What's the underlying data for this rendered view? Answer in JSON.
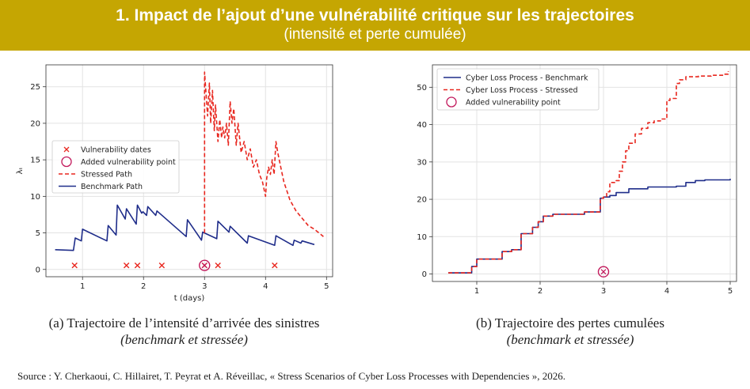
{
  "title": {
    "main": "1. Impact de l’ajout d’une vulnérabilité critique sur les trajectoires",
    "sub": "(intensité et perte cumulée)"
  },
  "captions": {
    "a_line1": "(a) Trajectoire de l’intensité d’arrivée des sinistres",
    "a_line2": "(benchmark et stressée)",
    "b_line1": "(b) Trajectoire des pertes cumulées",
    "b_line2": "(benchmark et stressée)"
  },
  "source": "Source : Y. Cherkaoui, C. Hillairet, T. Peyrat et A. Réveillac, « Stress Scenarios of Cyber Loss Processes with Dependencies », 2026.",
  "colors": {
    "banner": "#c5a602",
    "benchmark": "#1f2d8a",
    "stressed": "#e8271f",
    "marker": "#c2185b"
  },
  "chart_data": [
    {
      "type": "line",
      "xlabel": "t (days)",
      "ylabel": "λₜ",
      "xlim": [
        0.4,
        5.1
      ],
      "ylim": [
        -1,
        28
      ],
      "xticks": [
        1,
        2,
        3,
        4,
        5
      ],
      "yticks": [
        0,
        5,
        10,
        15,
        20,
        25
      ],
      "grid": true,
      "legend_position": "center-left",
      "legend": [
        "Vulnerability dates",
        "Added vulnerability point",
        "Stressed Path",
        "Benchmark Path"
      ],
      "series": [
        {
          "name": "Benchmark Path",
          "style": "solid",
          "x": [
            0.55,
            0.85,
            0.88,
            0.98,
            1.0,
            1.4,
            1.42,
            1.55,
            1.57,
            1.7,
            1.72,
            1.88,
            1.9,
            1.97,
            1.99,
            2.05,
            2.07,
            2.2,
            2.22,
            2.7,
            2.72,
            2.95,
            2.97,
            3.2,
            3.22,
            3.4,
            3.42,
            3.7,
            3.72,
            4.15,
            4.17,
            4.45,
            4.47,
            4.58,
            4.6,
            4.8
          ],
          "y": [
            2.7,
            2.6,
            4.3,
            3.9,
            5.5,
            3.9,
            6.0,
            4.7,
            8.8,
            6.9,
            8.3,
            6.2,
            8.8,
            7.7,
            7.9,
            7.4,
            8.6,
            7.4,
            8.0,
            4.5,
            6.8,
            4.0,
            5.1,
            4.2,
            6.6,
            5.1,
            5.9,
            3.6,
            4.6,
            3.3,
            4.6,
            3.3,
            4.0,
            3.6,
            3.9,
            3.4
          ]
        },
        {
          "name": "Stressed Path",
          "style": "dashed",
          "x": [
            3.0,
            3.0,
            3.05,
            3.08,
            3.1,
            3.13,
            3.16,
            3.18,
            3.22,
            3.25,
            3.28,
            3.3,
            3.33,
            3.36,
            3.39,
            3.42,
            3.45,
            3.48,
            3.52,
            3.55,
            3.6,
            3.65,
            3.7,
            3.75,
            3.8,
            3.85,
            3.9,
            3.95,
            4.0,
            4.02,
            4.05,
            4.08,
            4.11,
            4.14,
            4.17,
            4.2,
            4.25,
            4.3,
            4.4,
            4.5,
            4.6,
            4.7,
            4.8,
            4.95
          ],
          "y": [
            5.0,
            27.0,
            21.0,
            25.5,
            20.0,
            24.5,
            19.0,
            22.5,
            17.5,
            20.5,
            18.0,
            19.5,
            18.0,
            20.0,
            17.0,
            23.0,
            20.0,
            22.0,
            17.0,
            20.0,
            16.0,
            17.5,
            15.0,
            16.5,
            14.0,
            15.0,
            13.0,
            12.0,
            10.0,
            12.5,
            14.0,
            13.0,
            15.0,
            13.0,
            17.5,
            16.0,
            14.0,
            12.0,
            9.5,
            8.0,
            7.0,
            6.0,
            5.5,
            4.5
          ]
        },
        {
          "name": "Vulnerability dates",
          "style": "marker-x",
          "x": [
            0.87,
            1.72,
            1.9,
            2.3,
            3.0,
            3.22,
            4.15
          ],
          "y": [
            0.55,
            0.55,
            0.55,
            0.55,
            0.55,
            0.55,
            0.55
          ]
        },
        {
          "name": "Added vulnerability point",
          "style": "marker-circle",
          "x": [
            3.0
          ],
          "y": [
            0.55
          ]
        }
      ]
    },
    {
      "type": "line",
      "xlabel": "",
      "ylabel": "",
      "xlim": [
        0.3,
        5.1
      ],
      "ylim": [
        -2,
        56
      ],
      "xticks": [
        1,
        2,
        3,
        4,
        5
      ],
      "yticks": [
        0,
        10,
        20,
        30,
        40,
        50
      ],
      "grid": true,
      "legend_position": "top-left",
      "legend": [
        "Cyber Loss Process - Benchmark",
        "Cyber Loss Process - Stressed",
        "Added vulnerability point"
      ],
      "series": [
        {
          "name": "Cyber Loss Process - Benchmark",
          "style": "solid-step",
          "x": [
            0.55,
            0.9,
            0.92,
            1.0,
            1.4,
            1.55,
            1.7,
            1.88,
            1.97,
            2.05,
            2.2,
            2.7,
            2.95,
            3.0,
            3.1,
            3.2,
            3.4,
            3.7,
            4.15,
            4.3,
            4.45,
            4.6,
            5.0
          ],
          "y": [
            0.3,
            0.3,
            2.0,
            4.0,
            6.0,
            6.5,
            10.8,
            12.5,
            14.0,
            15.5,
            16.0,
            16.6,
            20.3,
            20.6,
            21.0,
            21.8,
            22.8,
            23.3,
            23.5,
            24.5,
            25.0,
            25.2,
            25.5
          ]
        },
        {
          "name": "Cyber Loss Process - Stressed",
          "style": "dashed-step",
          "x": [
            0.55,
            0.9,
            0.92,
            1.0,
            1.4,
            1.55,
            1.7,
            1.88,
            1.97,
            2.05,
            2.2,
            2.7,
            2.95,
            3.0,
            3.05,
            3.1,
            3.2,
            3.25,
            3.3,
            3.35,
            3.4,
            3.5,
            3.6,
            3.7,
            3.8,
            3.9,
            4.0,
            4.05,
            4.15,
            4.2,
            4.3,
            4.5,
            4.7,
            4.9,
            4.97
          ],
          "y": [
            0.3,
            0.3,
            2.0,
            4.0,
            6.0,
            6.5,
            10.8,
            12.5,
            14.0,
            15.5,
            16.0,
            16.6,
            20.3,
            20.6,
            22.0,
            24.5,
            25.0,
            27.5,
            30.0,
            33.0,
            35.0,
            37.5,
            39.0,
            40.5,
            41.0,
            41.5,
            46.5,
            47.0,
            51.0,
            52.0,
            52.8,
            53.0,
            53.2,
            53.5,
            54.3
          ]
        },
        {
          "name": "Added vulnerability point",
          "style": "marker-circle",
          "x": [
            3.0
          ],
          "y": [
            0.6
          ]
        }
      ]
    }
  ]
}
